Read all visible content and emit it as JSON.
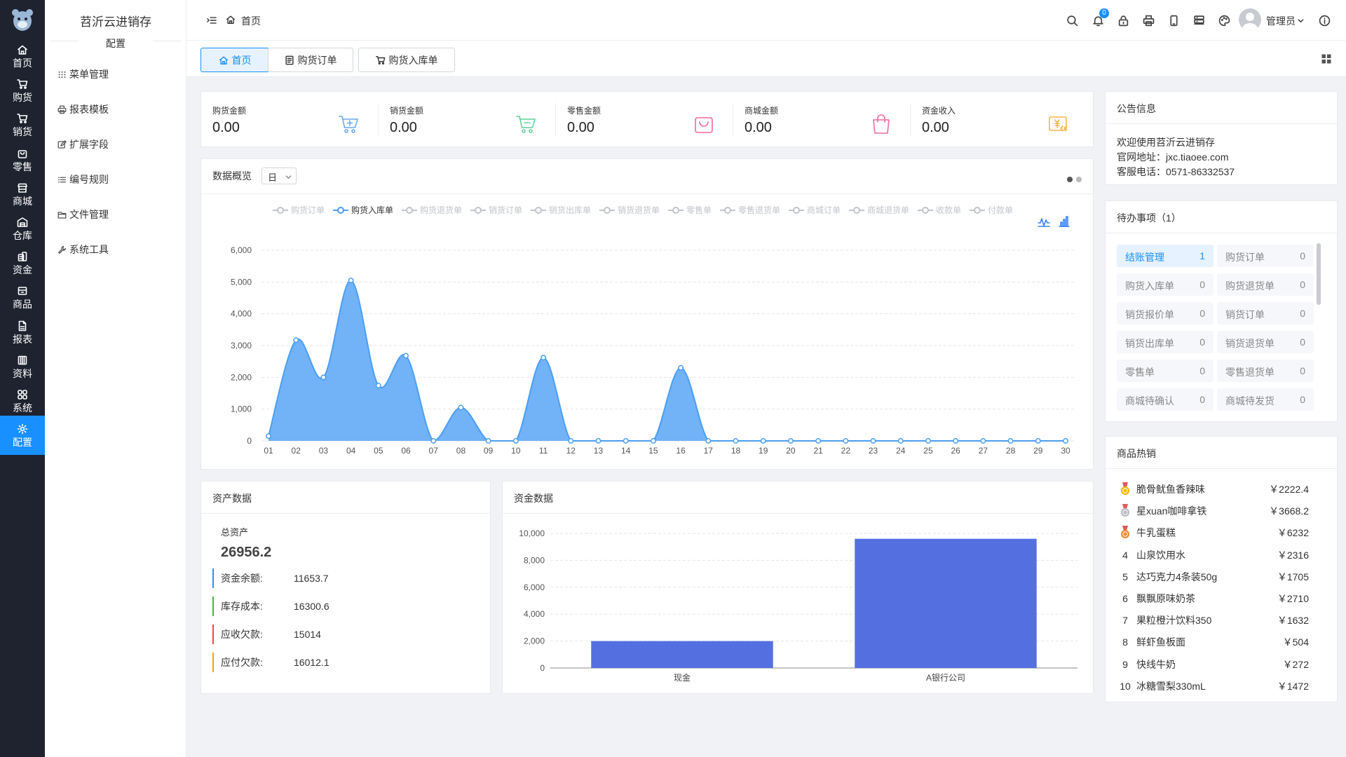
{
  "app": {
    "title": "苕沂云进销存",
    "section": "配置"
  },
  "rail": [
    {
      "label": "首页",
      "icon": "home-icon"
    },
    {
      "label": "购货",
      "icon": "cart-icon"
    },
    {
      "label": "销货",
      "icon": "cart-out-icon"
    },
    {
      "label": "零售",
      "icon": "bag-icon"
    },
    {
      "label": "商城",
      "icon": "store-icon"
    },
    {
      "label": "仓库",
      "icon": "warehouse-icon"
    },
    {
      "label": "资金",
      "icon": "coins-icon"
    },
    {
      "label": "商品",
      "icon": "box-icon"
    },
    {
      "label": "报表",
      "icon": "report-icon"
    },
    {
      "label": "资料",
      "icon": "archive-icon"
    },
    {
      "label": "系统",
      "icon": "grid-icon"
    },
    {
      "label": "配置",
      "icon": "gear-icon"
    }
  ],
  "submenu": [
    {
      "label": "菜单管理",
      "icon": "menu-dots-icon"
    },
    {
      "label": "报表模板",
      "icon": "printer-icon"
    },
    {
      "label": "扩展字段",
      "icon": "edit-icon"
    },
    {
      "label": "编号规则",
      "icon": "list-icon"
    },
    {
      "label": "文件管理",
      "icon": "folder-icon"
    },
    {
      "label": "系统工具",
      "icon": "wrench-icon"
    }
  ],
  "header": {
    "breadcrumb": "首页",
    "notify_count": "0",
    "user": "管理员"
  },
  "tabs": [
    {
      "label": "首页",
      "active": true
    },
    {
      "label": "购货订单",
      "active": false
    },
    {
      "label": "购货入库单",
      "active": false
    }
  ],
  "stats": [
    {
      "label": "购货金额",
      "value": "0.00",
      "color": "#6aa8e8"
    },
    {
      "label": "销货金额",
      "value": "0.00",
      "color": "#5fd39a"
    },
    {
      "label": "零售金额",
      "value": "0.00",
      "color": "#f06aa0"
    },
    {
      "label": "商城金额",
      "value": "0.00",
      "color": "#f06aa0"
    },
    {
      "label": "资金收入",
      "value": "0.00",
      "color": "#f5b54a"
    }
  ],
  "overview": {
    "title": "数据概览",
    "period": "日"
  },
  "chart_data": [
    {
      "type": "area",
      "legend": [
        "购货订单",
        "购货入库单",
        "购货退货单",
        "销货订单",
        "销货出库单",
        "销货退货单",
        "零售单",
        "零售退货单",
        "商城订单",
        "商城退货单",
        "收款单",
        "付款单"
      ],
      "active_series": "购货入库单",
      "x": [
        "01",
        "02",
        "03",
        "04",
        "05",
        "06",
        "07",
        "08",
        "09",
        "10",
        "11",
        "12",
        "13",
        "14",
        "15",
        "16",
        "17",
        "18",
        "19",
        "20",
        "21",
        "22",
        "23",
        "24",
        "25",
        "26",
        "27",
        "28",
        "29",
        "30"
      ],
      "series": [
        {
          "name": "购货入库单",
          "values": [
            150,
            3170,
            2000,
            5050,
            1740,
            2680,
            0,
            1050,
            0,
            0,
            2620,
            0,
            0,
            0,
            0,
            2300,
            0,
            0,
            0,
            0,
            0,
            0,
            0,
            0,
            0,
            0,
            0,
            0,
            0,
            0
          ]
        }
      ],
      "ylim": [
        0,
        6000
      ],
      "yticks": [
        "0",
        "1,000",
        "2,000",
        "3,000",
        "4,000",
        "5,000",
        "6,000"
      ],
      "color": "#4a9ff5"
    },
    {
      "type": "bar",
      "title": "资金数据",
      "categories": [
        "现金",
        "A银行公司"
      ],
      "values": [
        2000,
        9600
      ],
      "ylim": [
        0,
        10000
      ],
      "yticks": [
        "0",
        "2,000",
        "4,000",
        "6,000",
        "8,000",
        "10,000"
      ],
      "color": "#5470e0"
    }
  ],
  "asset": {
    "title": "资产数据",
    "total_label": "总资产",
    "total": "26956.2",
    "rows": [
      {
        "k": "资金余额:",
        "v": "11653.7",
        "color": "#3a8ee6"
      },
      {
        "k": "库存成本:",
        "v": "16300.6",
        "color": "#4caf50"
      },
      {
        "k": "应收欠款:",
        "v": "15014",
        "color": "#e04b4b"
      },
      {
        "k": "应付欠款:",
        "v": "16012.1",
        "color": "#f0a020"
      }
    ]
  },
  "fund": {
    "title": "资金数据"
  },
  "notice": {
    "title": "公告信息",
    "lines": [
      "欢迎使用苕沂云进销存",
      "官网地址：jxc.tiaoee.com",
      "客服电话：0571-86332537"
    ]
  },
  "todo": {
    "title": "待办事项（1）",
    "items": [
      {
        "label": "结账管理",
        "count": "1",
        "active": true
      },
      {
        "label": "购货订单",
        "count": "0"
      },
      {
        "label": "购货入库单",
        "count": "0"
      },
      {
        "label": "购货退货单",
        "count": "0"
      },
      {
        "label": "销货报价单",
        "count": "0"
      },
      {
        "label": "销货订单",
        "count": "0"
      },
      {
        "label": "销货出库单",
        "count": "0"
      },
      {
        "label": "销货退货单",
        "count": "0"
      },
      {
        "label": "零售单",
        "count": "0"
      },
      {
        "label": "零售退货单",
        "count": "0"
      },
      {
        "label": "商城待确认",
        "count": "0"
      },
      {
        "label": "商城待发货",
        "count": "0"
      }
    ]
  },
  "hot": {
    "title": "商品热销",
    "items": [
      {
        "rank": "1",
        "name": "脆骨鱿鱼香辣味",
        "price": "￥2222.4",
        "medal": "#f5b800"
      },
      {
        "rank": "2",
        "name": "星xuan咖啡拿铁",
        "price": "￥3668.2",
        "medal": "#b8bcc6"
      },
      {
        "rank": "3",
        "name": "牛乳蛋糕",
        "price": "￥6232",
        "medal": "#f08a2c"
      },
      {
        "rank": "4",
        "name": "山泉饮用水",
        "price": "￥2316"
      },
      {
        "rank": "5",
        "name": "达巧克力4条装50g",
        "price": "￥1705"
      },
      {
        "rank": "6",
        "name": "飘飘原味奶茶",
        "price": "￥2710"
      },
      {
        "rank": "7",
        "name": "果粒橙汁饮料350",
        "price": "￥1632"
      },
      {
        "rank": "8",
        "name": "鲜虾鱼板面",
        "price": "￥504"
      },
      {
        "rank": "9",
        "name": "快线牛奶",
        "price": "￥272"
      },
      {
        "rank": "10",
        "name": "冰糖雪梨330mL",
        "price": "￥1472"
      }
    ]
  }
}
